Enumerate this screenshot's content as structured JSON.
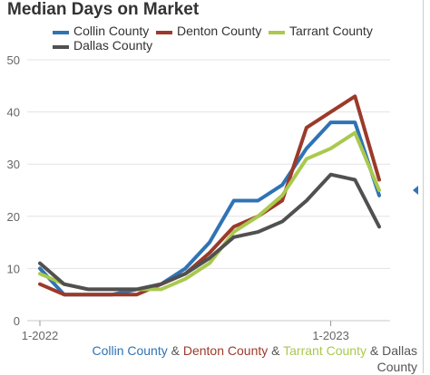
{
  "chart_data": {
    "type": "line",
    "title": "Median Days on Market",
    "xlabel": "",
    "ylabel": "",
    "ylim": [
      0,
      50
    ],
    "yticks": [
      0,
      10,
      20,
      30,
      40,
      50
    ],
    "x_tick_labels": [
      {
        "index": 0,
        "label": "1-2022"
      },
      {
        "index": 12,
        "label": "1-2023"
      }
    ],
    "n_points": 15,
    "grid": true,
    "legend_position": "top",
    "series": [
      {
        "name": "Collin County",
        "color": "#2f73b5",
        "values": [
          10,
          5,
          5,
          5,
          6,
          7,
          10,
          15,
          23,
          23,
          26,
          33,
          38,
          38,
          24
        ]
      },
      {
        "name": "Denton County",
        "color": "#9b3a2a",
        "values": [
          7,
          5,
          5,
          5,
          5,
          7,
          9,
          13,
          18,
          20,
          23,
          37,
          40,
          43,
          27
        ]
      },
      {
        "name": "Tarrant County",
        "color": "#a9c94e",
        "values": [
          9,
          7,
          6,
          6,
          6,
          6,
          8,
          11,
          17,
          20,
          24,
          31,
          33,
          36,
          25
        ]
      },
      {
        "name": "Dallas County",
        "color": "#505050",
        "values": [
          11,
          7,
          6,
          6,
          6,
          7,
          9,
          12,
          16,
          17,
          19,
          23,
          28,
          27,
          18
        ]
      }
    ]
  },
  "caption": {
    "parts": [
      {
        "text": "Collin County",
        "color": "#2f73b5"
      },
      {
        "text": " & ",
        "color": "#555555"
      },
      {
        "text": "Denton County",
        "color": "#9b3a2a"
      },
      {
        "text": " & ",
        "color": "#555555"
      },
      {
        "text": "Tarrant County",
        "color": "#a9c94e"
      },
      {
        "text": " & ",
        "color": "#555555"
      },
      {
        "text": "Dallas County",
        "color": "#555555"
      }
    ]
  },
  "icons": {
    "panel_toggle": "left-arrow-icon"
  }
}
